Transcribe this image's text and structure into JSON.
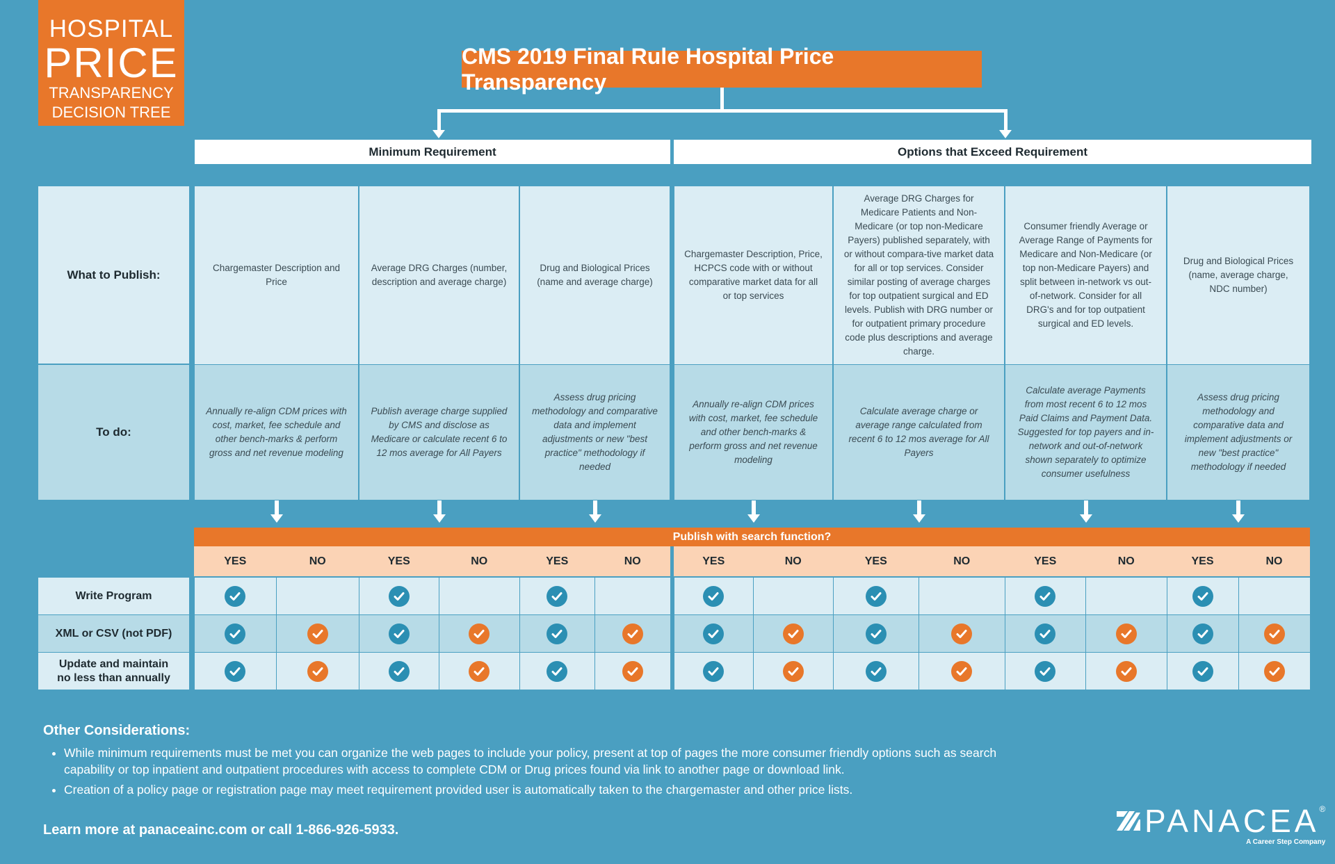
{
  "logo": {
    "line1": "HOSPITAL",
    "line2": "PRICE",
    "line3": "TRANSPARENCY",
    "line4": "DECISION TREE"
  },
  "title": "CMS 2019 Final Rule Hospital Price Transparency",
  "headers": {
    "minimum": "Minimum Requirement",
    "options": "Options that Exceed Requirement"
  },
  "row_labels": {
    "publish": "What to Publish:",
    "todo": "To do:"
  },
  "columns": [
    {
      "group": "minimum",
      "publish": "Chargemaster Description and Price",
      "todo": "Annually re-align CDM prices with cost, market, fee schedule and other bench-marks & perform gross and net revenue modeling"
    },
    {
      "group": "minimum",
      "publish": "Average DRG Charges (number, description and average charge)",
      "todo": "Publish average charge supplied by CMS and disclose as Medicare or calculate recent 6 to 12 mos average for All Payers"
    },
    {
      "group": "minimum",
      "publish": "Drug and Biological Prices (name and average charge)",
      "todo": "Assess drug pricing methodology and comparative data and implement adjustments or new \"best practice\" methodology if needed"
    },
    {
      "group": "options",
      "publish": "Chargemaster Description, Price, HCPCS code with or without comparative market data for all or top services",
      "todo": "Annually re-align CDM prices with cost, market, fee schedule and other bench-marks & perform gross and net revenue modeling"
    },
    {
      "group": "options",
      "publish": "Average DRG Charges for Medicare Patients and Non-Medicare (or top non-Medicare Payers) published separately, with or without compara-tive market data for all or top services.  Consider similar posting of average charges for top outpatient surgical and ED levels. Publish with DRG number or for outpatient primary procedure code plus descriptions and average charge.",
      "todo": "Calculate average charge or average range calculated from recent 6 to 12 mos average for All Payers"
    },
    {
      "group": "options",
      "publish": "Consumer friendly Average or Average Range of Payments for Medicare and Non-Medicare (or top non-Medicare Payers) and split between in-network vs out-of-network.  Consider for all DRG's and for top outpatient surgical and ED levels.",
      "todo": "Calculate average Payments from most recent 6 to 12 mos Paid Claims and Payment Data. Suggested for top payers and in-network and out-of-network shown separately to optimize consumer usefulness"
    },
    {
      "group": "options",
      "publish": "Drug and Biological Prices (name, average charge, NDC number)",
      "todo": "Assess drug pricing methodology and comparative data and implement adjustments or new \"best practice\" methodology if needed"
    }
  ],
  "search_question": "Publish with search function?",
  "answers": {
    "yes": "YES",
    "no": "NO"
  },
  "requirements": [
    {
      "label": "Write Program",
      "yes": true,
      "no": false
    },
    {
      "label": "XML or CSV (not PDF)",
      "yes": true,
      "no": true
    },
    {
      "label": "Update and maintain no less than annually",
      "yes": true,
      "no": true
    }
  ],
  "colors": {
    "background": "#4a9fc1",
    "accent": "#e8772a",
    "check_yes": "#2b8fb3",
    "check_no": "#e8772a"
  },
  "other": {
    "heading": "Other Considerations:",
    "bullets": [
      "While minimum requirements must be met you can organize the web pages to include your policy, present at top of pages the more consumer friendly options such as search capability or top inpatient and outpatient procedures with access to complete CDM or Drug prices found via link to another page or download link.",
      "Creation of a policy page or registration page may meet requirement provided user is automatically taken to the chargemaster and other price lists."
    ]
  },
  "footer": {
    "learn_more": "Learn more at panaceainc.com or call 1-866-926-5933."
  },
  "brand": {
    "name": "PANACEA",
    "tagline": "A Career Step Company",
    "registered": "®"
  }
}
